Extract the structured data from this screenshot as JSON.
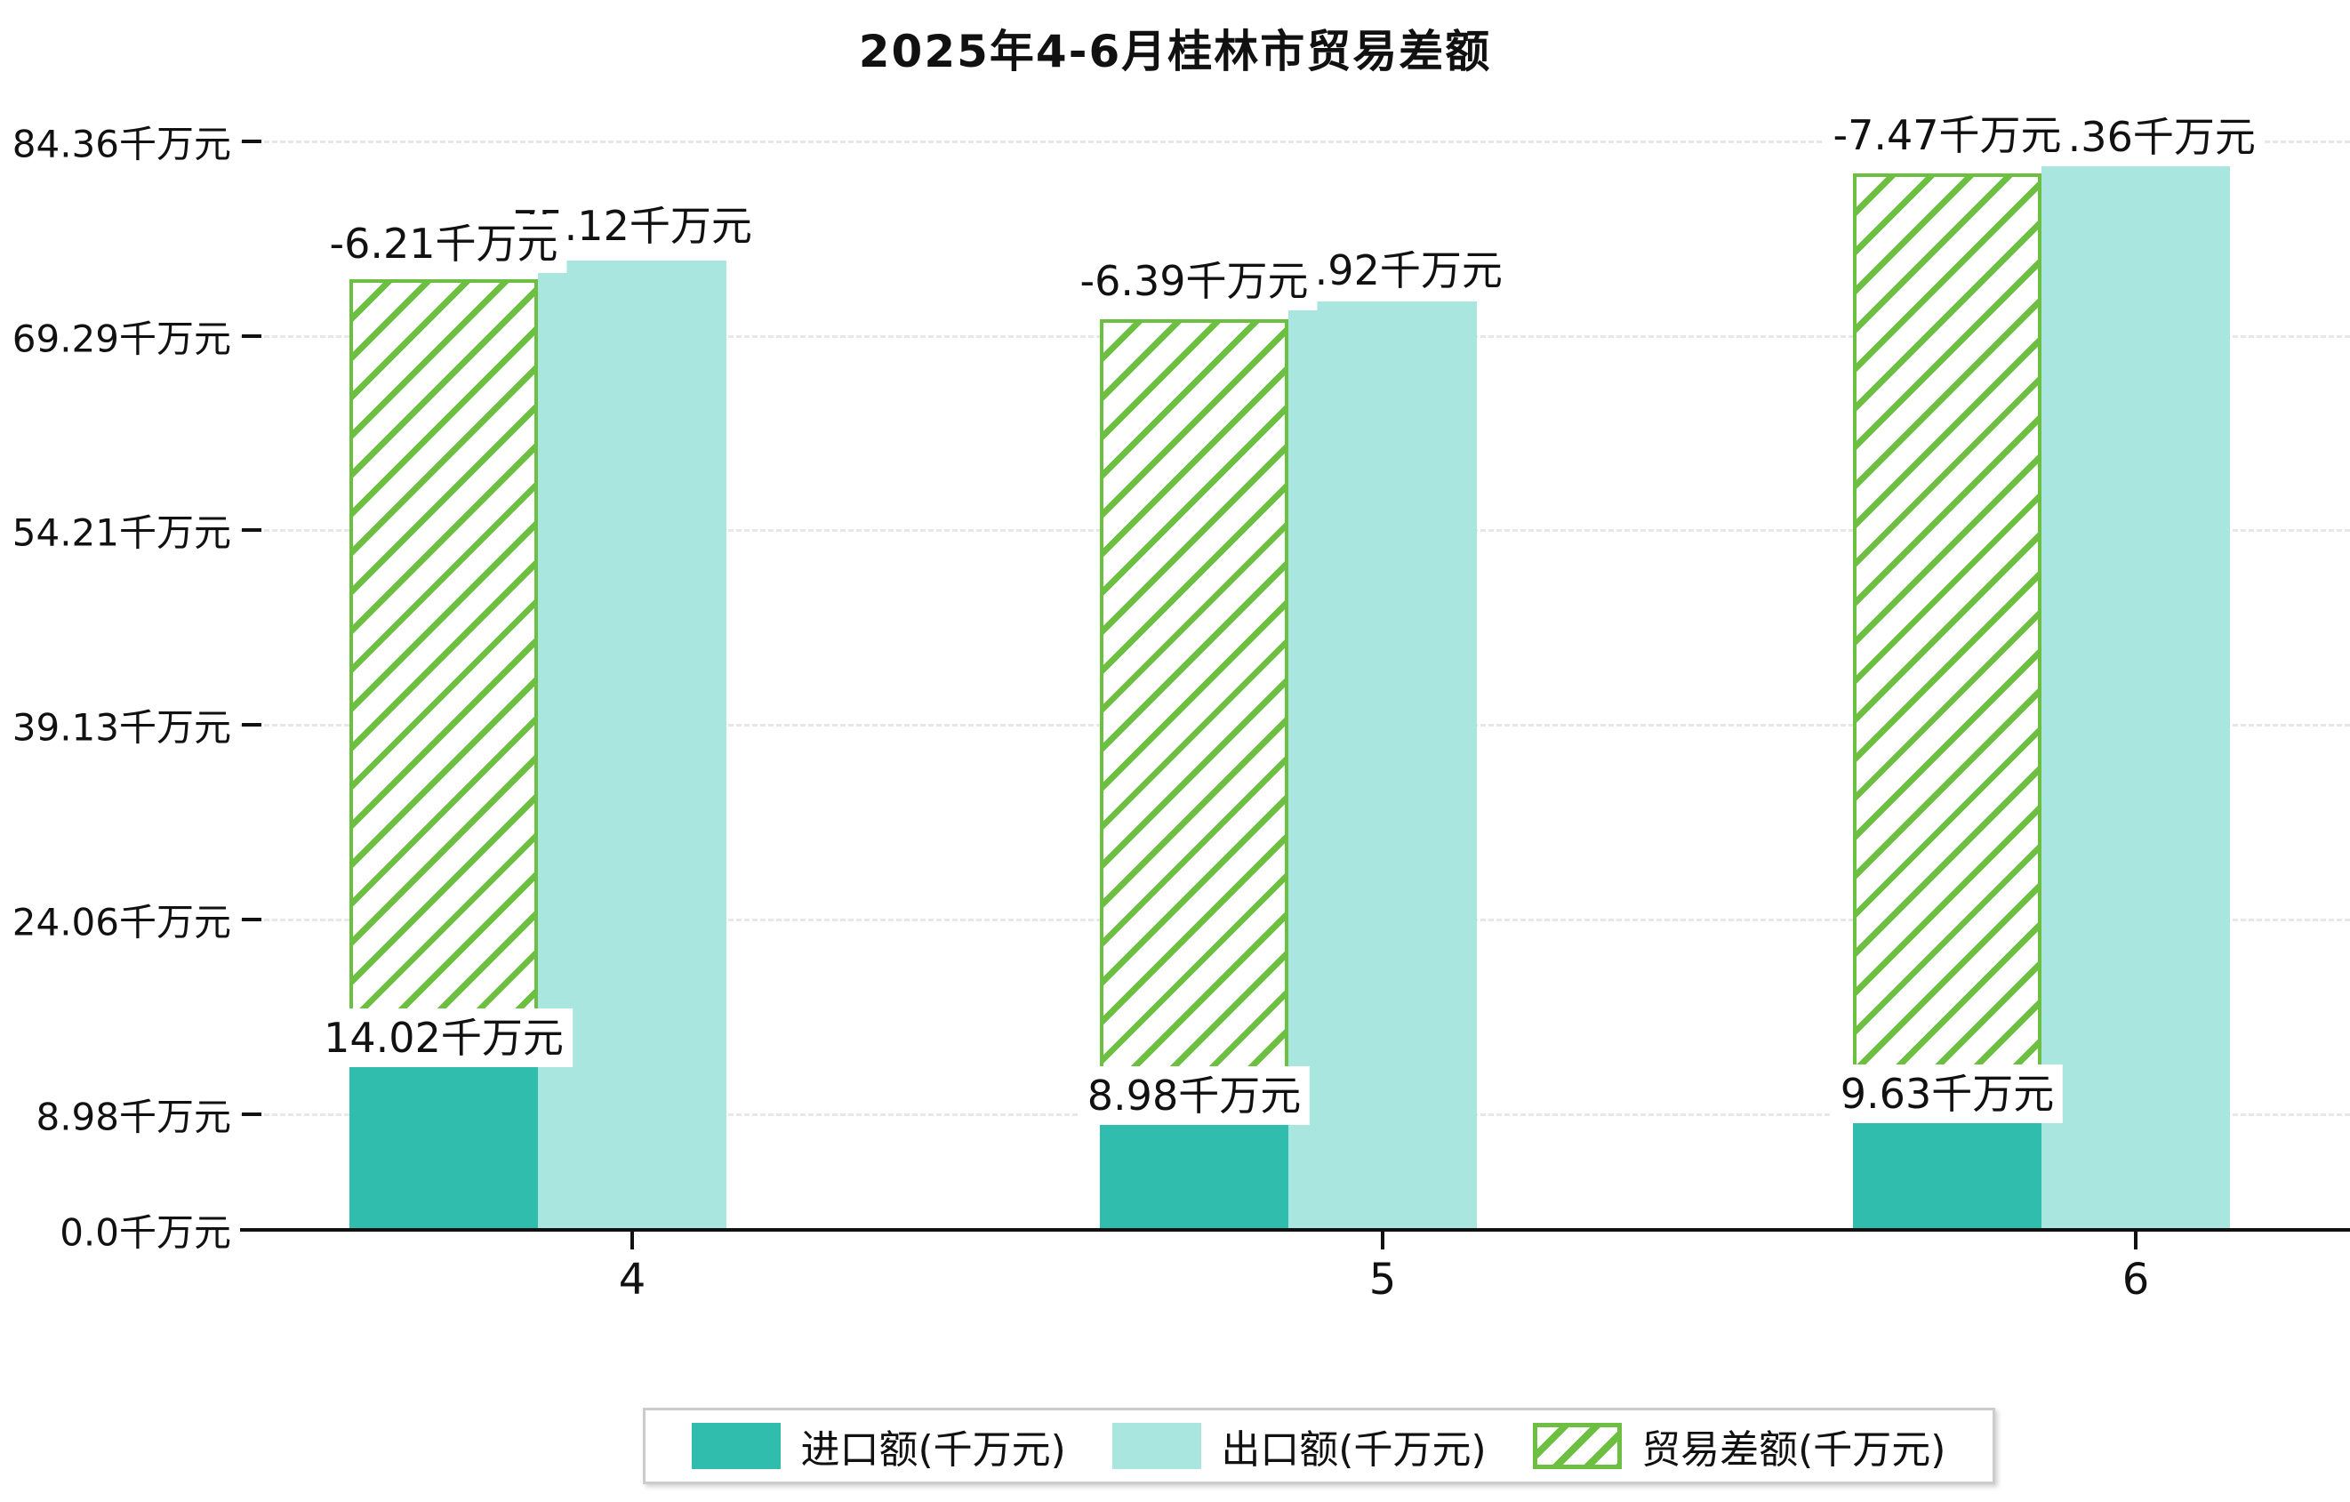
{
  "title": "2025年4-6月桂林市贸易差额",
  "chart_data": {
    "type": "bar",
    "title": "2025年4-6月桂林市贸易差额",
    "categories": [
      "4",
      "5",
      "6"
    ],
    "series": [
      {
        "name": "进口额(千万元)",
        "color": "#31bdae",
        "style": "solid",
        "values": [
          14.02,
          8.98,
          9.63
        ],
        "labels": [
          "14.02千万元",
          "8.98千万元",
          "9.63千万元"
        ]
      },
      {
        "name": "出口额(千万元)",
        "color": "#a9e6df",
        "style": "solid",
        "values": [
          75.12,
          71.92,
          84.36
        ],
        "labels": [
          "75.12千万元",
          "71.92千万元",
          "84.36千万元"
        ]
      },
      {
        "name": "贸易差额(千万元)",
        "color": "#6cbf40",
        "style": "hatched",
        "values": [
          -6.21,
          -6.39,
          -7.47
        ],
        "labels": [
          "-6.21千万元",
          "-6.39千万元",
          "-7.47千万元"
        ],
        "rendered_bar_tops": [
          73.7,
          70.6,
          81.9
        ]
      }
    ],
    "y_ticks": {
      "values": [
        0,
        8.98,
        24.06,
        39.13,
        54.21,
        69.29,
        84.36
      ],
      "labels": [
        "0.0千万元",
        "8.98千万元",
        "24.06千万元",
        "39.13千万元",
        "54.21千万元",
        "69.29千万元",
        "84.36千万元"
      ]
    },
    "xlabel": "",
    "ylabel": "",
    "ylim": [
      0,
      84.36
    ],
    "grid": "horizontal-dashed",
    "legend_position": "bottom"
  },
  "legend": {
    "items": [
      {
        "label": "进口额(千万元)"
      },
      {
        "label": "出口额(千万元)"
      },
      {
        "label": "贸易差额(千万元)"
      }
    ]
  }
}
